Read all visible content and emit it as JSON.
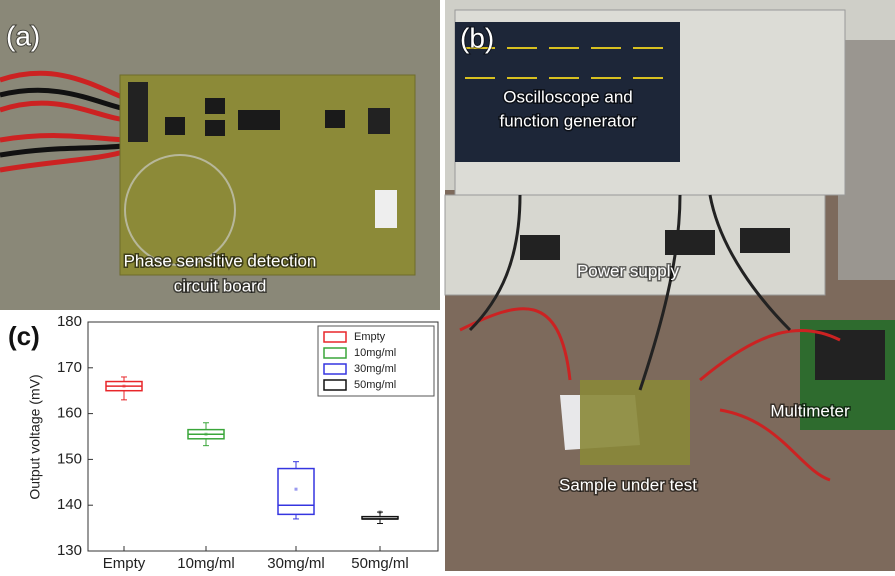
{
  "panels": {
    "a": {
      "label": "(a)",
      "caption": [
        "Phase sensitive detection",
        "circuit board"
      ]
    },
    "b": {
      "label": "(b)",
      "annotations": [
        "Oscilloscope and",
        "function generator",
        "Power supply",
        "Multimeter",
        "Sample under test"
      ]
    }
  },
  "chart_data": {
    "type": "box",
    "panel_label": "(c)",
    "y_label": "Output voltage (mV)",
    "categories": [
      "Empty",
      "10mg/ml",
      "30mg/ml",
      "50mg/ml"
    ],
    "ylim": [
      130,
      180
    ],
    "yticks": [
      130,
      140,
      150,
      160,
      170,
      180
    ],
    "series": [
      {
        "name": "Empty",
        "color": "#e8262a",
        "whisker_low": 163,
        "q1": 165,
        "median": 166,
        "q3": 167,
        "whisker_high": 168,
        "mean": 166
      },
      {
        "name": "10mg/ml",
        "color": "#3aa63a",
        "whisker_low": 153,
        "q1": 154.5,
        "median": 155.5,
        "q3": 156.5,
        "whisker_high": 158,
        "mean": 155.5
      },
      {
        "name": "30mg/ml",
        "color": "#3535e0",
        "whisker_low": 137,
        "q1": 138,
        "median": 140,
        "q3": 148,
        "whisker_high": 149.5,
        "mean": 143.5
      },
      {
        "name": "50mg/ml",
        "color": "#111111",
        "whisker_low": 136,
        "q1": 137,
        "median": 137,
        "q3": 137.5,
        "whisker_high": 138.5,
        "mean": 138.5
      }
    ],
    "legend": "upper right"
  }
}
